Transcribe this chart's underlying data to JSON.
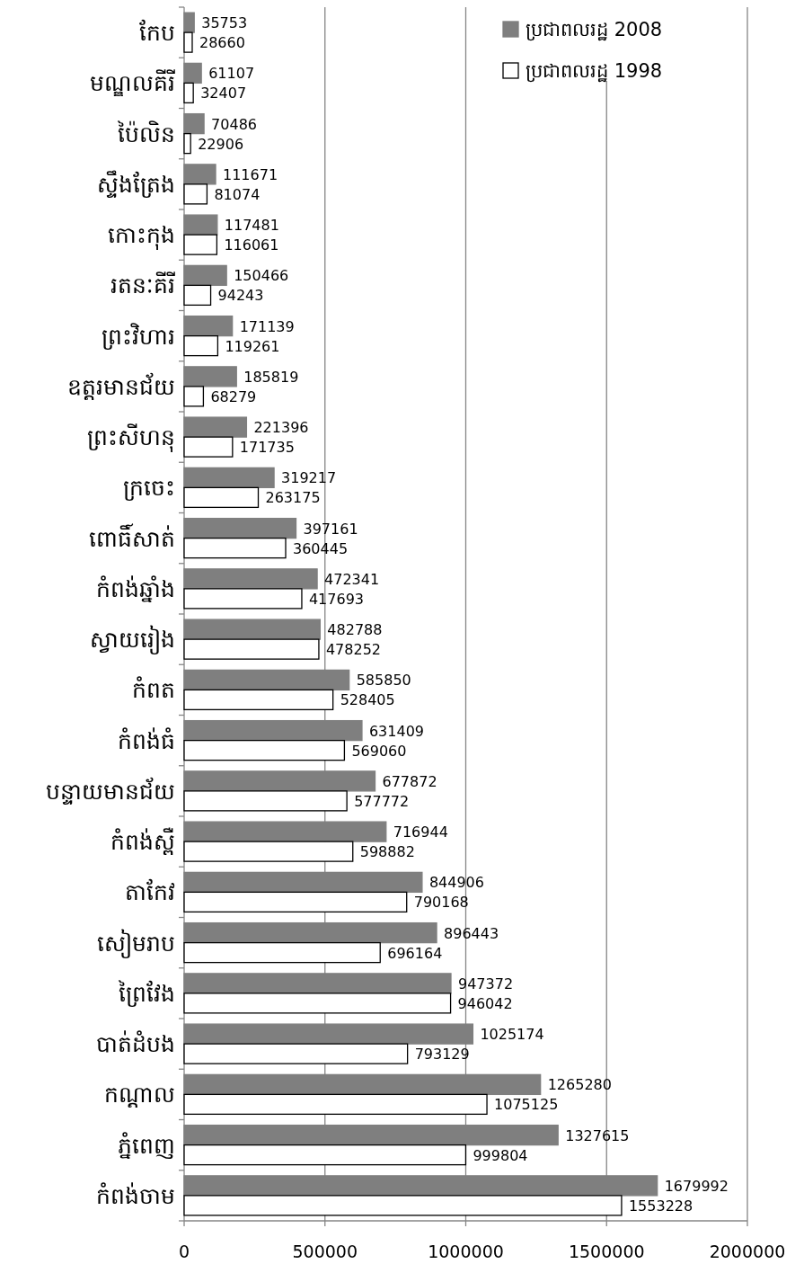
{
  "chart_data": {
    "type": "bar",
    "orientation": "horizontal",
    "categories": [
      "កែប",
      "មណ្ឌលគីរី",
      "ប៉ៃលិន",
      "ស្ទឹងត្រែង",
      "កោះកុង",
      "រតនៈគីរី",
      "ព្រះវិហារ",
      "ឧត្ដរមានជ័យ",
      "ព្រះសីហនុ",
      "ក្រចេះ",
      "ពោធិ៍សាត់",
      "កំពង់ឆ្នាំង",
      "ស្វាយរៀង",
      "កំពត",
      "កំពង់ធំ",
      "បន្ទាយមានជ័យ",
      "កំពង់ស្ពឺ",
      "តាកែវ",
      "សៀមរាប",
      "ព្រៃវែង",
      "បាត់ដំបង",
      "កណ្ដាល",
      "ភ្នំពេញ",
      "កំពង់ចាម"
    ],
    "series": [
      {
        "name": "ប្រជាពលរដ្ឋ 2008",
        "color": "#7f7f7f",
        "values": [
          35753,
          61107,
          70486,
          111671,
          117481,
          150466,
          171139,
          185819,
          221396,
          319217,
          397161,
          472341,
          482788,
          585850,
          631409,
          677872,
          716944,
          844906,
          896443,
          947372,
          1025174,
          1265280,
          1327615,
          1679992
        ]
      },
      {
        "name": "ប្រជាពលរដ្ឋ 1998",
        "color": "#ffffff",
        "values": [
          28660,
          32407,
          22906,
          81074,
          116061,
          94243,
          119261,
          68279,
          171735,
          263175,
          360445,
          417693,
          478252,
          528405,
          569060,
          577772,
          598882,
          790168,
          696164,
          946042,
          793129,
          1075125,
          999804,
          1553228
        ]
      }
    ],
    "xlim": [
      0,
      2000000
    ],
    "xticks": [
      0,
      500000,
      1000000,
      1500000,
      2000000
    ],
    "grid": "x",
    "legend": "top right",
    "data_labels": true
  }
}
